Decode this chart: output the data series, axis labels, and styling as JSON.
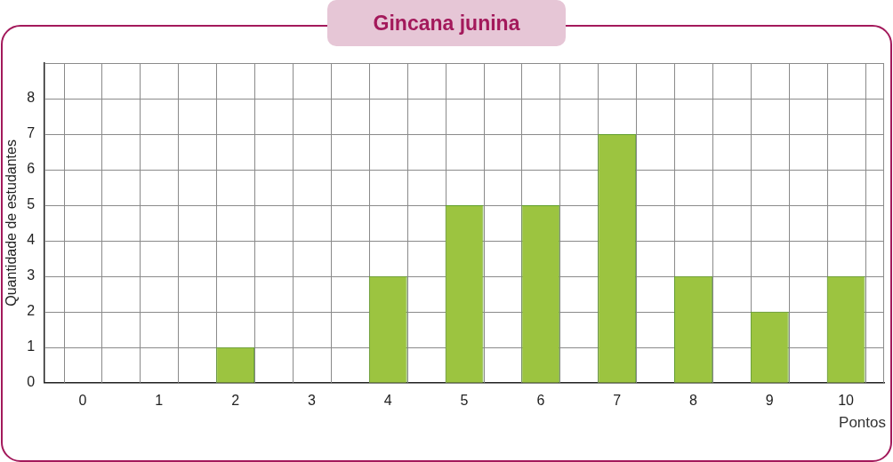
{
  "chart_data": {
    "type": "bar",
    "title": "Gincana junina",
    "xlabel": "Pontos",
    "ylabel": "Quantidade de estudantes",
    "categories": [
      "0",
      "1",
      "2",
      "3",
      "4",
      "5",
      "6",
      "7",
      "8",
      "9",
      "10"
    ],
    "values": [
      0,
      0,
      1,
      0,
      3,
      5,
      5,
      7,
      3,
      2,
      3
    ],
    "color": "#9cc440",
    "ylim": [
      0,
      9
    ],
    "yticks": [
      0,
      1,
      2,
      3,
      4,
      5,
      6,
      7,
      8
    ],
    "grid": true,
    "legend": false
  }
}
